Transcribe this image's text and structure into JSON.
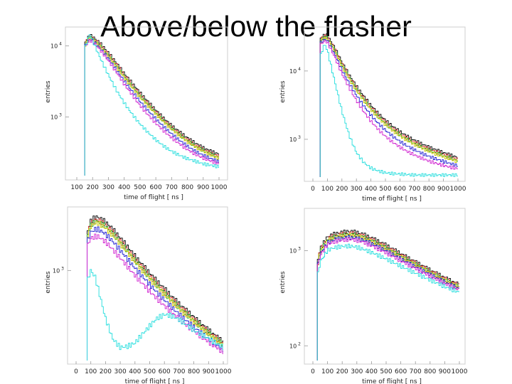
{
  "slide": {
    "title": "Above/below the flasher"
  },
  "colors": {
    "black": "#000000",
    "red": "#e03030",
    "green": "#22a822",
    "yellow": "#c9c300",
    "blue": "#1a1ad0",
    "magenta": "#d020d0",
    "cyan": "#22dddd"
  },
  "chart_data": [
    {
      "type": "line",
      "title": "",
      "xlabel": "time of flight [ ns ]",
      "ylabel": "entries",
      "yscale": "log",
      "xlim": [
        100,
        1000
      ],
      "ylim": [
        150,
        16000
      ],
      "xticks": [
        "100",
        "200",
        "300",
        "400",
        "500",
        "600",
        "700",
        "800",
        "900",
        "1000"
      ],
      "yticks": [
        {
          "value": 10000,
          "label": "10 4"
        },
        {
          "value": 1000,
          "label": "10 3"
        }
      ],
      "x": [
        150,
        180,
        200,
        250,
        300,
        350,
        400,
        450,
        500,
        550,
        600,
        650,
        700,
        750,
        800,
        850,
        900,
        950,
        1000
      ],
      "series": [
        {
          "color": "black",
          "values": [
            11000,
            14000,
            13500,
            10800,
            8000,
            5800,
            4100,
            3000,
            2200,
            1650,
            1250,
            960,
            760,
            620,
            510,
            430,
            370,
            330,
            300
          ]
        },
        {
          "color": "red",
          "values": [
            10500,
            13500,
            13000,
            10200,
            7600,
            5500,
            3900,
            2800,
            2050,
            1550,
            1180,
            900,
            720,
            580,
            480,
            400,
            350,
            310,
            280
          ]
        },
        {
          "color": "green",
          "values": [
            10300,
            13000,
            12600,
            9900,
            7300,
            5300,
            3750,
            2700,
            1980,
            1500,
            1140,
            880,
            700,
            565,
            465,
            390,
            340,
            300,
            270
          ]
        },
        {
          "color": "yellow",
          "values": [
            10000,
            12800,
            12300,
            9600,
            7100,
            5100,
            3600,
            2600,
            1900,
            1440,
            1100,
            850,
            675,
            545,
            450,
            380,
            330,
            290,
            262
          ]
        },
        {
          "color": "blue",
          "values": [
            9700,
            12300,
            11800,
            9100,
            6600,
            4600,
            3200,
            2300,
            1650,
            1240,
            940,
            730,
            580,
            470,
            390,
            330,
            290,
            260,
            235
          ]
        },
        {
          "color": "magenta",
          "values": [
            9400,
            12000,
            11500,
            8700,
            6200,
            4300,
            2900,
            2050,
            1450,
            1080,
            820,
            640,
            510,
            420,
            350,
            300,
            265,
            240,
            220
          ]
        },
        {
          "color": "cyan",
          "values": [
            9000,
            14500,
            12000,
            6600,
            3900,
            2400,
            1580,
            1100,
            800,
            610,
            480,
            390,
            330,
            290,
            260,
            240,
            220,
            210,
            200
          ]
        }
      ]
    },
    {
      "type": "line",
      "title": "",
      "xlabel": "time of flight [ ns ]",
      "ylabel": "entries",
      "yscale": "log",
      "xlim": [
        0,
        1000
      ],
      "ylim": [
        280,
        40000
      ],
      "xticks": [
        "0",
        "100",
        "200",
        "300",
        "400",
        "500",
        "600",
        "700",
        "800",
        "900",
        "1000"
      ],
      "yticks": [
        {
          "value": 10000,
          "label": "10 4"
        },
        {
          "value": 1000,
          "label": "10 3"
        }
      ],
      "x": [
        50,
        80,
        100,
        150,
        200,
        250,
        300,
        350,
        400,
        450,
        500,
        550,
        600,
        650,
        700,
        750,
        800,
        850,
        900,
        950,
        1000
      ],
      "series": [
        {
          "color": "black",
          "values": [
            30000,
            34000,
            33000,
            22000,
            13500,
            8800,
            6000,
            4300,
            3150,
            2400,
            1900,
            1550,
            1300,
            1110,
            970,
            860,
            770,
            700,
            640,
            590,
            540
          ]
        },
        {
          "color": "red",
          "values": [
            28500,
            32500,
            31500,
            21000,
            12800,
            8300,
            5600,
            4000,
            2950,
            2250,
            1780,
            1450,
            1210,
            1040,
            910,
            800,
            720,
            655,
            600,
            550,
            505
          ]
        },
        {
          "color": "green",
          "values": [
            27500,
            31500,
            30500,
            20300,
            12300,
            8000,
            5400,
            3850,
            2830,
            2160,
            1700,
            1390,
            1160,
            1000,
            870,
            770,
            690,
            630,
            575,
            530,
            485
          ]
        },
        {
          "color": "yellow",
          "values": [
            26500,
            30500,
            29500,
            19600,
            11900,
            7700,
            5200,
            3700,
            2720,
            2080,
            1640,
            1340,
            1120,
            960,
            840,
            745,
            665,
            605,
            555,
            510,
            470
          ]
        },
        {
          "color": "blue",
          "values": [
            25500,
            29000,
            28000,
            17800,
            10400,
            6600,
            4400,
            3100,
            2260,
            1720,
            1360,
            1110,
            930,
            800,
            705,
            625,
            565,
            515,
            475,
            440,
            410
          ]
        },
        {
          "color": "magenta",
          "values": [
            24000,
            27500,
            26500,
            16200,
            9200,
            5700,
            3700,
            2550,
            1850,
            1400,
            1110,
            910,
            770,
            665,
            590,
            530,
            480,
            445,
            415,
            390,
            370
          ]
        },
        {
          "color": "cyan",
          "values": [
            16000,
            25000,
            20000,
            7200,
            2600,
            1150,
            640,
            460,
            380,
            345,
            325,
            315,
            310,
            305,
            300,
            300,
            300,
            300,
            300,
            300,
            300
          ]
        }
      ]
    },
    {
      "type": "line",
      "title": "",
      "xlabel": "time of flight [ ns ]",
      "ylabel": "entries",
      "yscale": "log",
      "xlim": [
        0,
        1000
      ],
      "ylim": [
        170,
        3300
      ],
      "xticks": [
        "0",
        "100",
        "200",
        "300",
        "400",
        "500",
        "600",
        "700",
        "800",
        "900",
        "1000"
      ],
      "yticks": [
        {
          "value": 1000,
          "label": "10 3"
        }
      ],
      "x": [
        75,
        100,
        130,
        150,
        200,
        250,
        300,
        350,
        400,
        450,
        500,
        550,
        600,
        650,
        700,
        750,
        800,
        850,
        900,
        950,
        1000
      ],
      "series": [
        {
          "color": "black",
          "values": [
            2100,
            2650,
            2850,
            2850,
            2600,
            2250,
            1900,
            1600,
            1330,
            1120,
            950,
            810,
            700,
            600,
            520,
            455,
            400,
            350,
            310,
            275,
            245
          ]
        },
        {
          "color": "red",
          "values": [
            2000,
            2500,
            2700,
            2700,
            2450,
            2120,
            1790,
            1500,
            1250,
            1060,
            900,
            770,
            660,
            570,
            495,
            435,
            380,
            335,
            297,
            265,
            237
          ]
        },
        {
          "color": "green",
          "values": [
            1950,
            2450,
            2600,
            2620,
            2380,
            2060,
            1740,
            1460,
            1220,
            1030,
            870,
            745,
            640,
            555,
            482,
            423,
            372,
            328,
            291,
            260,
            233
          ]
        },
        {
          "color": "yellow",
          "values": [
            1900,
            2380,
            2530,
            2540,
            2300,
            2000,
            1690,
            1420,
            1190,
            1000,
            850,
            725,
            625,
            540,
            470,
            413,
            364,
            321,
            285,
            255,
            228
          ]
        },
        {
          "color": "blue",
          "values": [
            1750,
            2120,
            2250,
            2250,
            2050,
            1770,
            1490,
            1250,
            1050,
            890,
            760,
            650,
            560,
            485,
            423,
            372,
            329,
            292,
            260,
            234,
            211
          ]
        },
        {
          "color": "magenta",
          "values": [
            1600,
            1880,
            1950,
            1950,
            1760,
            1510,
            1280,
            1080,
            910,
            775,
            665,
            575,
            500,
            437,
            385,
            342,
            305,
            273,
            246,
            222,
            202
          ]
        },
        {
          "color": "cyan",
          "values": [
            800,
            1000,
            880,
            700,
            390,
            260,
            220,
            225,
            240,
            285,
            335,
            390,
            420,
            410,
            380,
            345,
            310,
            285,
            262,
            240,
            220
          ]
        }
      ]
    },
    {
      "type": "line",
      "title": "",
      "xlabel": "time of flight [ ns ]",
      "ylabel": "entries",
      "yscale": "log",
      "xlim": [
        0,
        1000
      ],
      "ylim": [
        70,
        2600
      ],
      "xticks": [
        "0",
        "100",
        "200",
        "300",
        "400",
        "500",
        "600",
        "700",
        "800",
        "900",
        "1000"
      ],
      "yticks": [
        {
          "value": 1000,
          "label": "10 3"
        },
        {
          "value": 100,
          "label": "10 2"
        }
      ],
      "x": [
        30,
        50,
        80,
        100,
        150,
        200,
        250,
        300,
        350,
        400,
        450,
        500,
        550,
        600,
        650,
        700,
        750,
        800,
        850,
        900,
        950,
        1000
      ],
      "series": [
        {
          "color": "black",
          "values": [
            750,
            1050,
            1250,
            1400,
            1500,
            1560,
            1600,
            1560,
            1470,
            1360,
            1250,
            1140,
            1030,
            930,
            840,
            760,
            690,
            625,
            570,
            520,
            475,
            440
          ]
        },
        {
          "color": "red",
          "values": [
            700,
            1000,
            1190,
            1330,
            1440,
            1490,
            1520,
            1490,
            1410,
            1300,
            1195,
            1090,
            990,
            895,
            810,
            735,
            668,
            607,
            553,
            505,
            462,
            428
          ]
        },
        {
          "color": "green",
          "values": [
            690,
            980,
            1160,
            1300,
            1400,
            1450,
            1480,
            1450,
            1370,
            1270,
            1165,
            1065,
            965,
            875,
            792,
            718,
            653,
            594,
            541,
            494,
            452,
            419
          ]
        },
        {
          "color": "yellow",
          "values": [
            680,
            960,
            1130,
            1270,
            1370,
            1420,
            1450,
            1420,
            1340,
            1240,
            1140,
            1040,
            945,
            856,
            775,
            703,
            640,
            582,
            530,
            484,
            443,
            411
          ]
        },
        {
          "color": "blue",
          "values": [
            660,
            920,
            1080,
            1210,
            1310,
            1350,
            1380,
            1350,
            1280,
            1185,
            1090,
            995,
            905,
            820,
            744,
            676,
            616,
            561,
            512,
            468,
            429,
            398
          ]
        },
        {
          "color": "magenta",
          "values": [
            640,
            890,
            1040,
            1160,
            1250,
            1290,
            1320,
            1290,
            1220,
            1130,
            1040,
            950,
            865,
            786,
            714,
            650,
            593,
            541,
            494,
            452,
            415,
            386
          ]
        },
        {
          "color": "cyan",
          "values": [
            520,
            760,
            900,
            1010,
            1080,
            1110,
            1120,
            1090,
            1030,
            960,
            890,
            820,
            752,
            690,
            633,
            582,
            535,
            493,
            455,
            420,
            390,
            365
          ]
        }
      ]
    }
  ]
}
